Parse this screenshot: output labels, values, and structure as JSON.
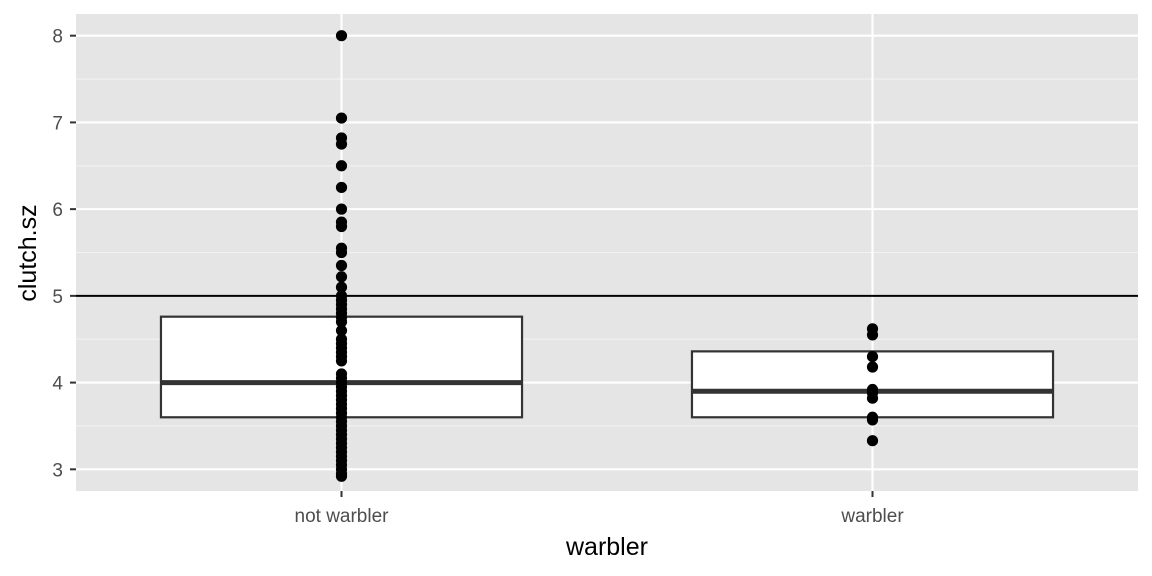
{
  "chart_data": {
    "type": "boxplot",
    "xlabel": "warbler",
    "ylabel": "clutch.sz",
    "categories": [
      "not warbler",
      "warbler"
    ],
    "ylim": [
      2.75,
      8.25
    ],
    "y_ticks": [
      3,
      4,
      5,
      6,
      7,
      8
    ],
    "y_tick_labels": [
      "3",
      "4",
      "5",
      "6",
      "7",
      "8"
    ],
    "reference_line": {
      "y": 5
    },
    "grid": true,
    "boxes": [
      {
        "category": "not warbler",
        "q1": 3.6,
        "median": 4.0,
        "q3": 4.76,
        "points": [
          8.0,
          7.05,
          6.82,
          6.75,
          6.5,
          6.25,
          6.0,
          5.85,
          5.8,
          5.55,
          5.5,
          5.35,
          5.22,
          5.1,
          5.0,
          4.95,
          4.9,
          4.85,
          4.8,
          4.75,
          4.7,
          4.6,
          4.5,
          4.45,
          4.4,
          4.35,
          4.3,
          4.25,
          4.1,
          4.05,
          4.0,
          3.95,
          3.9,
          3.85,
          3.8,
          3.75,
          3.7,
          3.65,
          3.6,
          3.55,
          3.5,
          3.45,
          3.4,
          3.35,
          3.3,
          3.25,
          3.2,
          3.15,
          3.1,
          3.05,
          3.0,
          2.95,
          2.92
        ]
      },
      {
        "category": "warbler",
        "q1": 3.6,
        "median": 3.9,
        "q3": 4.36,
        "points": [
          4.62,
          4.55,
          4.3,
          4.18,
          3.92,
          3.88,
          3.82,
          3.6,
          3.57,
          3.33
        ]
      }
    ]
  }
}
